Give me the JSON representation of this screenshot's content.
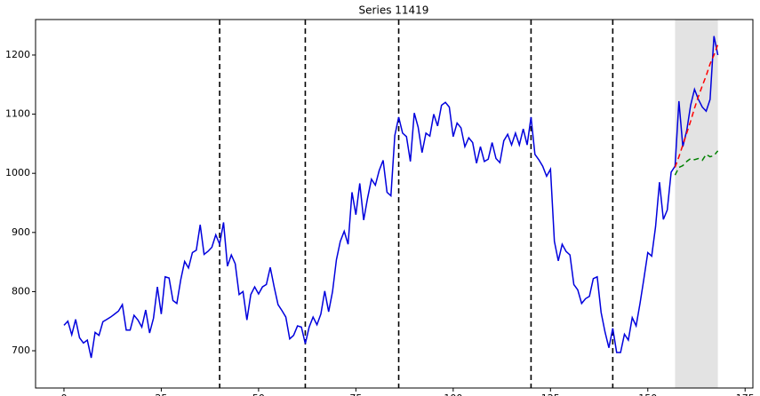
{
  "chart_data": {
    "type": "line",
    "title": "Series 11419",
    "xlim": [
      -7.3,
      177
    ],
    "ylim": [
      637,
      1260
    ],
    "xticks": [
      0,
      25,
      50,
      75,
      100,
      125,
      150,
      175
    ],
    "yticks": [
      700,
      800,
      900,
      1000,
      1100,
      1200
    ],
    "vlines": [
      40,
      62,
      86,
      120,
      141
    ],
    "vline_color": "#000000",
    "shade": [
      157,
      168
    ],
    "shade_color": "#e3e3e3",
    "series": [
      {
        "color": "#0000dd",
        "dashed": false,
        "x": [
          0,
          1,
          2,
          3,
          4,
          5,
          6,
          7,
          8,
          9,
          10,
          11,
          12,
          13,
          14,
          15,
          16,
          17,
          18,
          19,
          20,
          21,
          22,
          23,
          24,
          25,
          26,
          27,
          28,
          29,
          30,
          31,
          32,
          33,
          34,
          35,
          36,
          37,
          38,
          39,
          40,
          41,
          42,
          43,
          44,
          45,
          46,
          47,
          48,
          49,
          50,
          51,
          52,
          53,
          54,
          55,
          56,
          57,
          58,
          59,
          60,
          61,
          62,
          63,
          64,
          65,
          66,
          67,
          68,
          69,
          70,
          71,
          72,
          73,
          74,
          75,
          76,
          77,
          78,
          79,
          80,
          81,
          82,
          83,
          84,
          85,
          86,
          87,
          88,
          89,
          90,
          91,
          92,
          93,
          94,
          95,
          96,
          97,
          98,
          99,
          100,
          101,
          102,
          103,
          104,
          105,
          106,
          107,
          108,
          109,
          110,
          111,
          112,
          113,
          114,
          115,
          116,
          117,
          118,
          119,
          120,
          121,
          122,
          123,
          124,
          125,
          126,
          127,
          128,
          129,
          130,
          131,
          132,
          133,
          134,
          135,
          136,
          137,
          138,
          139,
          140,
          141,
          142,
          143,
          144,
          145,
          146,
          147,
          148,
          149,
          150,
          151,
          152,
          153,
          154,
          155,
          156,
          157,
          158,
          159,
          160,
          161,
          162,
          163,
          164,
          165,
          166,
          167,
          168
        ],
        "values": [
          743,
          750,
          727,
          753,
          722,
          713,
          718,
          688,
          731,
          726,
          749,
          753,
          757,
          762,
          767,
          778,
          735,
          735,
          760,
          752,
          740,
          769,
          730,
          755,
          808,
          762,
          825,
          823,
          785,
          780,
          820,
          851,
          840,
          866,
          870,
          913,
          863,
          868,
          875,
          896,
          880,
          917,
          843,
          862,
          847,
          795,
          800,
          752,
          795,
          808,
          796,
          808,
          812,
          841,
          808,
          778,
          768,
          757,
          720,
          726,
          742,
          740,
          712,
          740,
          757,
          744,
          762,
          801,
          766,
          800,
          854,
          885,
          902,
          880,
          968,
          930,
          983,
          921,
          958,
          990,
          980,
          1005,
          1022,
          968,
          962,
          1064,
          1095,
          1068,
          1062,
          1020,
          1102,
          1078,
          1035,
          1068,
          1063,
          1100,
          1080,
          1115,
          1120,
          1112,
          1062,
          1085,
          1077,
          1045,
          1060,
          1052,
          1017,
          1045,
          1020,
          1024,
          1052,
          1025,
          1018,
          1055,
          1066,
          1048,
          1068,
          1048,
          1075,
          1048,
          1095,
          1032,
          1023,
          1012,
          995,
          1007,
          885,
          852,
          880,
          868,
          862,
          812,
          803,
          780,
          788,
          792,
          822,
          825,
          765,
          732,
          705,
          738,
          697,
          697,
          728,
          718,
          756,
          742,
          780,
          822,
          866,
          860,
          910,
          985,
          922,
          938,
          1002,
          1012,
          1122,
          1045,
          1072,
          1115,
          1142,
          1125,
          1112,
          1105,
          1125,
          1232,
          1200
        ]
      },
      {
        "color": "#ff0000",
        "dashed": true,
        "x": [
          157,
          158,
          159,
          160,
          161,
          162,
          163,
          164,
          165,
          166,
          167,
          168
        ],
        "values": [
          1010,
          1028,
          1048,
          1068,
          1088,
          1110,
          1130,
          1148,
          1165,
          1185,
          1200,
          1218
        ]
      },
      {
        "color": "#008000",
        "dashed": true,
        "x": [
          157,
          158,
          159,
          160,
          161,
          162,
          163,
          164,
          165,
          166,
          167,
          168
        ],
        "values": [
          997,
          1010,
          1013,
          1020,
          1025,
          1023,
          1025,
          1022,
          1032,
          1028,
          1030,
          1038
        ]
      }
    ]
  }
}
